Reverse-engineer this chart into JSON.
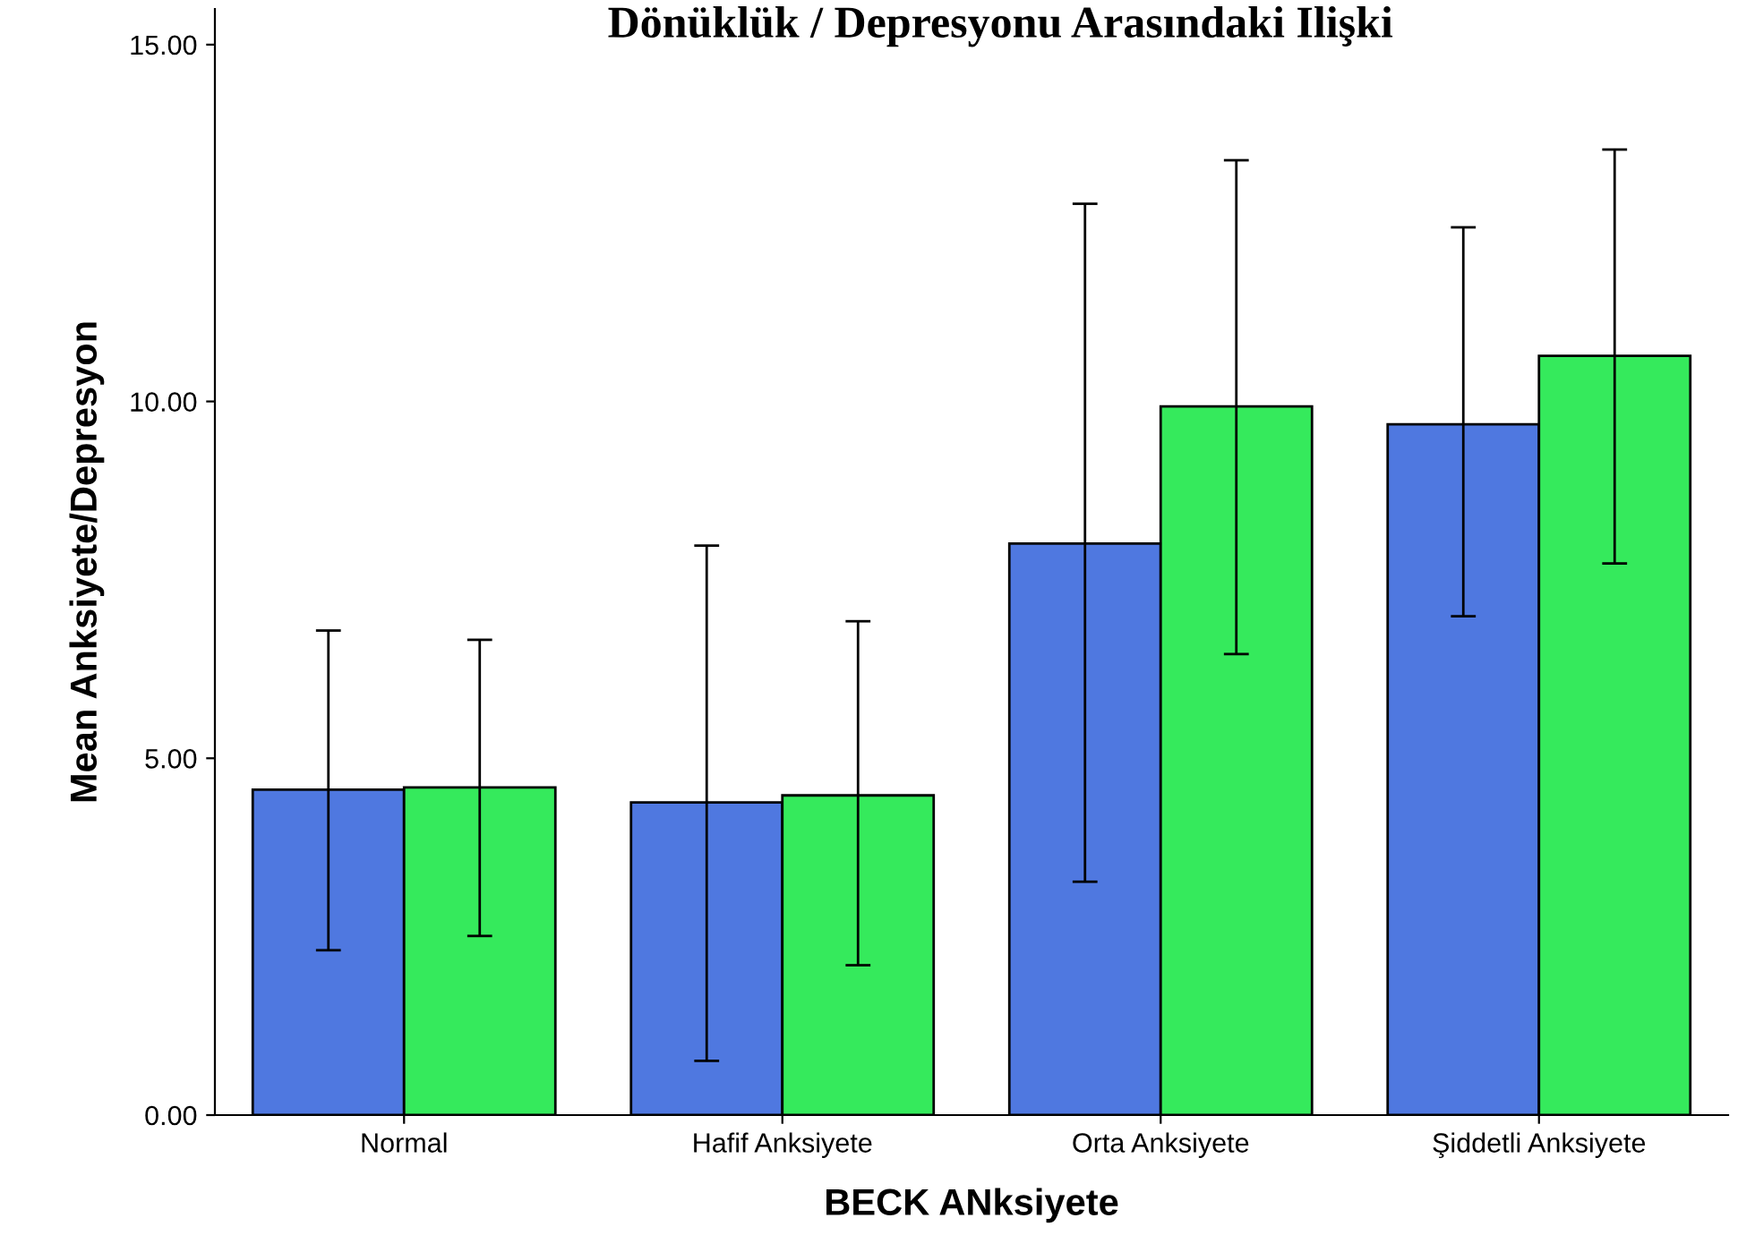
{
  "chart_data": {
    "type": "bar",
    "title": "Dönüklük / Depresyonu Arasındaki Ilişki",
    "xlabel": "BECK ANksiyete",
    "ylabel": "Mean Anksiyete/Depresyon",
    "categories": [
      "Normal",
      "Hafif Anksiyete",
      "Orta Anksiyete",
      "Şiddetli Anksiyete"
    ],
    "series": [
      {
        "color": "#4f78e0",
        "values": [
          4.56,
          4.38,
          8.01,
          9.68
        ],
        "errors": [
          [
            2.31,
            6.79
          ],
          [
            0.76,
            7.98
          ],
          [
            3.27,
            12.77
          ],
          [
            6.99,
            12.44
          ]
        ]
      },
      {
        "color": "#35ea5c",
        "values": [
          4.59,
          4.48,
          9.93,
          10.64
        ],
        "errors": [
          [
            2.51,
            6.66
          ],
          [
            2.1,
            6.92
          ],
          [
            6.46,
            13.38
          ],
          [
            7.73,
            13.53
          ]
        ]
      }
    ],
    "ylim": [
      0,
      15.5
    ],
    "yticks": [
      {
        "value": 0,
        "label": "0.00"
      },
      {
        "value": 5,
        "label": "5.00"
      },
      {
        "value": 10,
        "label": "10.00"
      },
      {
        "value": 15,
        "label": "15.00"
      }
    ],
    "grid": false,
    "legend": false
  }
}
